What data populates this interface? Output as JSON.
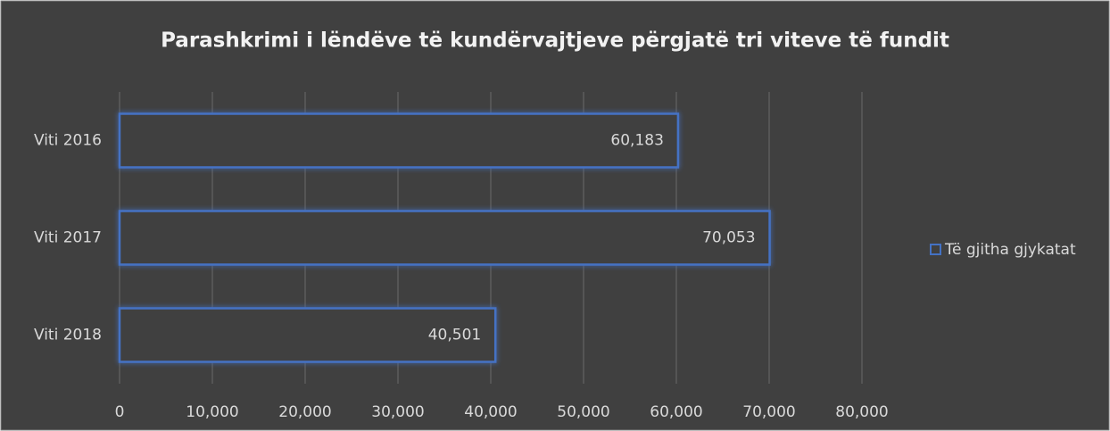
{
  "chart_data": {
    "type": "bar",
    "orientation": "horizontal",
    "title": "Parashkrimi i lëndëve të kundërvajtjeve përgjatë tri viteve të fundit",
    "categories": [
      "Viti 2016",
      "Viti 2017",
      "Viti 2018"
    ],
    "series": [
      {
        "name": "Të gjitha gjykatat",
        "color": "#4472c4",
        "values": [
          60183,
          70053,
          40501
        ],
        "value_labels": [
          "60,183",
          "70,053",
          "40,501"
        ]
      }
    ],
    "xlim": [
      0,
      80000
    ],
    "xticks": [
      0,
      {
        "value": 10000,
        "label": "10,000"
      },
      {
        "value": 20000,
        "label": "20,000"
      },
      {
        "value": 30000,
        "label": "30,000"
      },
      {
        "value": 40000,
        "label": "40,000"
      },
      {
        "value": 50000,
        "label": "50,000"
      },
      {
        "value": 60000,
        "label": "60,000"
      },
      {
        "value": 70000,
        "label": "70,000"
      },
      {
        "value": 80000,
        "label": "80,000"
      }
    ],
    "grid": true,
    "legend": "right"
  }
}
